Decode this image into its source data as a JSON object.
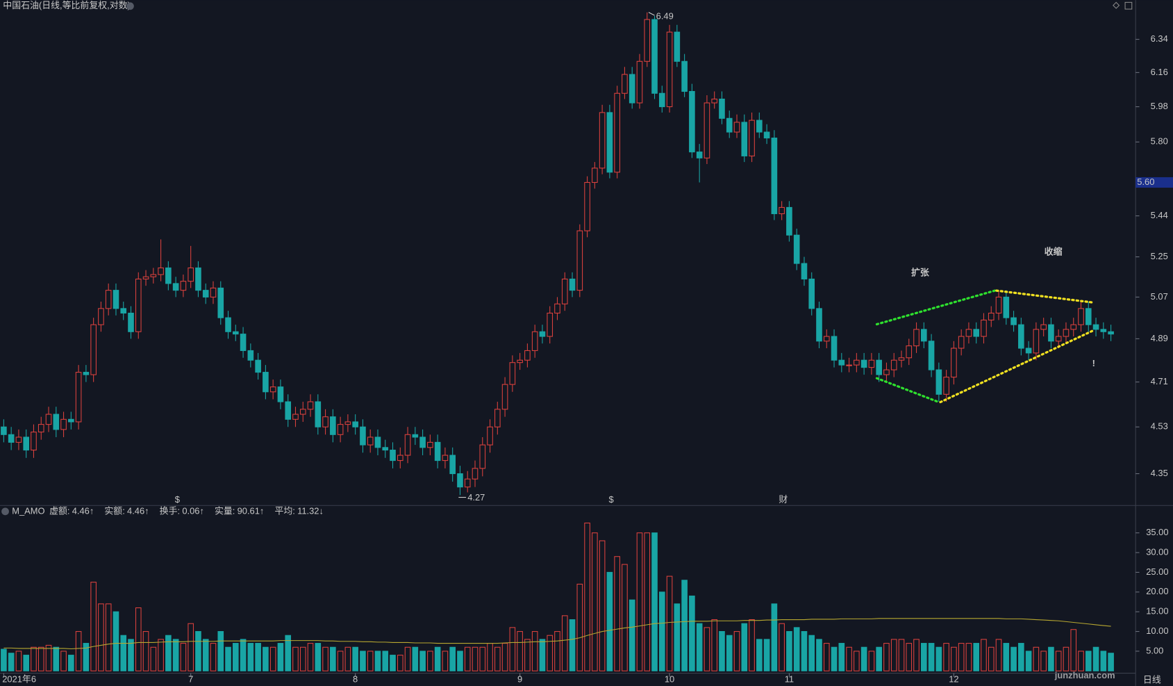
{
  "chart_data": {
    "type": "candlestick",
    "title": "中国石油(日线,等比前复权,对数)",
    "log_scale": true,
    "up_color": "#d9413d",
    "down_color": "#19a5a5",
    "ylim": [
      4.24,
      6.5
    ],
    "yticks": [
      6.34,
      6.16,
      5.98,
      {
        "value": 5.8,
        "label": "5.80"
      },
      5.44,
      5.25,
      5.07,
      4.89,
      4.71,
      4.53,
      4.35
    ],
    "current_price": {
      "value": 5.6,
      "label": "5.60"
    },
    "high_marker": 6.49,
    "low_marker": 4.27,
    "period_label": "日线",
    "watermark": "junzhuan.com",
    "event_markers": [
      {
        "text": "$",
        "color": "#e03030"
      },
      {
        "text": "$",
        "color": "#e03030"
      },
      {
        "text": "财",
        "color": "#4a8cff"
      }
    ],
    "annotations": [
      {
        "text": "扩张",
        "color": "#2ee02e"
      },
      {
        "text": "收缩",
        "color": "#f0e020"
      },
      {
        "text": "!",
        "color": "#ffffff"
      }
    ],
    "categories": [
      "2021年6",
      null,
      null,
      null,
      null,
      null,
      null,
      null,
      null,
      null,
      null,
      null,
      null,
      null,
      null,
      null,
      null,
      null,
      null,
      null,
      null,
      null,
      null,
      null,
      null,
      "7",
      null,
      null,
      null,
      null,
      null,
      null,
      null,
      null,
      null,
      null,
      null,
      null,
      null,
      null,
      null,
      null,
      null,
      null,
      null,
      null,
      null,
      "8",
      null,
      null,
      null,
      null,
      null,
      null,
      null,
      null,
      null,
      null,
      null,
      null,
      null,
      null,
      null,
      null,
      null,
      null,
      null,
      null,
      null,
      "9",
      null,
      null,
      null,
      null,
      null,
      null,
      null,
      null,
      null,
      null,
      null,
      null,
      null,
      null,
      null,
      null,
      null,
      null,
      null,
      "10",
      null,
      null,
      null,
      null,
      null,
      null,
      null,
      null,
      null,
      null,
      null,
      null,
      null,
      null,
      null,
      "11",
      null,
      null,
      null,
      null,
      null,
      null,
      null,
      null,
      null,
      null,
      null,
      null,
      null,
      null,
      null,
      null,
      null,
      null,
      null,
      null,
      null,
      "12",
      null,
      null,
      null,
      null,
      null,
      null,
      null,
      null,
      null,
      null,
      null,
      null,
      null,
      null,
      null,
      null,
      null,
      null,
      null,
      null,
      null
    ],
    "open": [
      4.53,
      4.5,
      4.47,
      4.49,
      4.44,
      4.51,
      4.54,
      4.58,
      4.52,
      4.56,
      4.55,
      4.75,
      4.74,
      4.95,
      5.02,
      5.1,
      5.02,
      5.0,
      4.92,
      5.15,
      5.16,
      5.17,
      5.2,
      5.13,
      5.1,
      5.14,
      5.2,
      5.1,
      5.07,
      5.11,
      4.98,
      4.92,
      4.91,
      4.84,
      4.8,
      4.75,
      4.67,
      4.69,
      4.63,
      4.56,
      4.58,
      4.6,
      4.63,
      4.53,
      4.57,
      4.5,
      4.54,
      4.55,
      4.53,
      4.46,
      4.49,
      4.45,
      4.44,
      4.4,
      4.42,
      4.5,
      4.49,
      4.45,
      4.47,
      4.4,
      4.42,
      4.35,
      4.3,
      4.33,
      4.37,
      4.46,
      4.53,
      4.6,
      4.7,
      4.79,
      4.8,
      4.84,
      4.92,
      4.9,
      5.0,
      5.04,
      5.15,
      5.1,
      5.37,
      5.6,
      5.67,
      5.95,
      5.65,
      6.05,
      6.15,
      6.0,
      6.22,
      6.45,
      6.05,
      5.98,
      6.38,
      6.22,
      6.06,
      5.75,
      5.72,
      6.0,
      6.02,
      5.92,
      5.85,
      5.9,
      5.73,
      5.91,
      5.85,
      5.82,
      5.45,
      5.48,
      5.35,
      5.22,
      5.15,
      5.02,
      4.88,
      4.9,
      4.8,
      4.78,
      4.78,
      4.8,
      4.77,
      4.8,
      4.74,
      4.76,
      4.8,
      4.81,
      4.86,
      4.93,
      4.88,
      4.76,
      4.66,
      4.73,
      4.85,
      4.9,
      4.93,
      4.9,
      4.97,
      5.0,
      5.07,
      4.98,
      4.95,
      4.85,
      4.83,
      4.93,
      4.95,
      4.88,
      4.9,
      4.93,
      4.95,
      5.02,
      4.95,
      4.93,
      4.92
    ],
    "high": [
      4.56,
      4.53,
      4.52,
      4.52,
      4.54,
      4.57,
      4.61,
      4.61,
      4.59,
      4.59,
      4.78,
      4.78,
      4.98,
      5.05,
      5.13,
      5.13,
      5.05,
      5.03,
      5.18,
      5.19,
      5.2,
      5.33,
      5.23,
      5.16,
      5.17,
      5.3,
      5.23,
      5.13,
      5.14,
      5.14,
      5.01,
      4.95,
      4.94,
      4.87,
      4.83,
      4.78,
      4.72,
      4.72,
      4.66,
      4.61,
      4.63,
      4.66,
      4.66,
      4.6,
      4.6,
      4.57,
      4.58,
      4.58,
      4.56,
      4.52,
      4.52,
      4.48,
      4.47,
      4.45,
      4.53,
      4.53,
      4.52,
      4.5,
      4.5,
      4.45,
      4.45,
      4.38,
      4.36,
      4.4,
      4.49,
      4.56,
      4.63,
      4.73,
      4.82,
      4.83,
      4.87,
      4.95,
      4.95,
      5.03,
      5.07,
      5.18,
      5.18,
      5.4,
      5.63,
      5.7,
      5.99,
      5.99,
      6.09,
      6.19,
      6.19,
      6.26,
      6.49,
      6.47,
      6.09,
      6.42,
      6.42,
      6.26,
      6.1,
      5.79,
      6.04,
      6.06,
      6.06,
      5.96,
      5.94,
      5.94,
      5.95,
      5.95,
      5.89,
      5.86,
      5.51,
      5.51,
      5.38,
      5.25,
      5.18,
      5.05,
      4.93,
      4.93,
      4.83,
      4.81,
      4.83,
      4.83,
      4.83,
      4.83,
      4.79,
      4.83,
      4.84,
      4.89,
      4.96,
      4.96,
      4.91,
      4.79,
      4.76,
      4.88,
      4.93,
      4.96,
      4.96,
      5.0,
      5.03,
      5.1,
      5.1,
      5.01,
      4.98,
      4.88,
      4.96,
      4.98,
      4.98,
      4.93,
      4.96,
      4.98,
      5.05,
      5.05,
      4.98,
      4.96,
      4.95
    ],
    "low": [
      4.47,
      4.44,
      4.44,
      4.41,
      4.41,
      4.48,
      4.51,
      4.49,
      4.49,
      4.52,
      4.52,
      4.71,
      4.71,
      4.92,
      4.99,
      4.99,
      4.97,
      4.89,
      4.89,
      5.12,
      5.13,
      5.14,
      5.1,
      5.07,
      5.07,
      5.11,
      5.07,
      5.04,
      5.04,
      4.95,
      4.89,
      4.88,
      4.81,
      4.77,
      4.72,
      4.64,
      4.64,
      4.6,
      4.53,
      4.53,
      4.55,
      4.57,
      4.5,
      4.5,
      4.47,
      4.47,
      4.51,
      4.5,
      4.43,
      4.43,
      4.42,
      4.41,
      4.37,
      4.37,
      4.39,
      4.46,
      4.42,
      4.42,
      4.37,
      4.37,
      4.32,
      4.27,
      4.28,
      4.3,
      4.34,
      4.43,
      4.5,
      4.57,
      4.67,
      4.76,
      4.77,
      4.81,
      4.87,
      4.87,
      4.97,
      5.01,
      5.07,
      5.07,
      5.34,
      5.57,
      5.64,
      5.62,
      5.62,
      6.02,
      5.97,
      5.97,
      6.19,
      6.02,
      5.95,
      5.95,
      6.19,
      6.03,
      5.72,
      5.6,
      5.69,
      5.97,
      5.89,
      5.82,
      5.82,
      5.7,
      5.7,
      5.82,
      5.79,
      5.42,
      5.42,
      5.32,
      5.19,
      5.12,
      4.99,
      4.85,
      4.85,
      4.77,
      4.75,
      4.75,
      4.75,
      4.74,
      4.74,
      4.71,
      4.71,
      4.73,
      4.77,
      4.78,
      4.83,
      4.85,
      4.73,
      4.63,
      4.63,
      4.7,
      4.82,
      4.87,
      4.87,
      4.87,
      4.94,
      4.97,
      4.95,
      4.92,
      4.82,
      4.8,
      4.8,
      4.9,
      4.85,
      4.85,
      4.87,
      4.9,
      4.92,
      4.92,
      4.9,
      4.89,
      4.88
    ],
    "close": [
      4.5,
      4.47,
      4.49,
      4.44,
      4.51,
      4.54,
      4.58,
      4.52,
      4.56,
      4.55,
      4.75,
      4.74,
      4.95,
      5.02,
      5.1,
      5.02,
      5.0,
      4.92,
      5.15,
      5.16,
      5.17,
      5.2,
      5.13,
      5.1,
      5.14,
      5.2,
      5.1,
      5.07,
      5.11,
      4.98,
      4.92,
      4.91,
      4.84,
      4.8,
      4.75,
      4.67,
      4.69,
      4.63,
      4.56,
      4.58,
      4.6,
      4.63,
      4.53,
      4.57,
      4.5,
      4.54,
      4.55,
      4.53,
      4.46,
      4.49,
      4.45,
      4.44,
      4.4,
      4.42,
      4.5,
      4.49,
      4.45,
      4.47,
      4.4,
      4.42,
      4.35,
      4.3,
      4.33,
      4.37,
      4.46,
      4.53,
      4.6,
      4.7,
      4.79,
      4.8,
      4.84,
      4.92,
      4.9,
      5.0,
      5.04,
      5.15,
      5.1,
      5.37,
      5.6,
      5.67,
      5.95,
      5.65,
      6.05,
      6.15,
      6.0,
      6.22,
      6.45,
      6.05,
      5.98,
      6.38,
      6.22,
      6.06,
      5.75,
      5.72,
      6.0,
      6.02,
      5.92,
      5.85,
      5.9,
      5.73,
      5.91,
      5.85,
      5.82,
      5.45,
      5.48,
      5.35,
      5.22,
      5.15,
      5.02,
      4.88,
      4.9,
      4.8,
      4.78,
      4.78,
      4.8,
      4.77,
      4.8,
      4.74,
      4.76,
      4.8,
      4.81,
      4.86,
      4.93,
      4.88,
      4.76,
      4.66,
      4.73,
      4.85,
      4.9,
      4.93,
      4.9,
      4.97,
      5.0,
      5.07,
      4.98,
      4.95,
      4.85,
      4.83,
      4.93,
      4.95,
      4.88,
      4.9,
      4.93,
      4.95,
      5.02,
      4.95,
      4.93,
      4.92,
      4.91
    ],
    "volume": {
      "type": "bar",
      "name": "M_AMO",
      "ma_color": "#b8a830",
      "ylim": [
        0,
        41
      ],
      "yticks": [
        {
          "value": 35,
          "label": "35.00"
        },
        {
          "value": 30,
          "label": "30.00"
        },
        {
          "value": 25,
          "label": "25.00"
        },
        {
          "value": 20,
          "label": "20.00"
        },
        {
          "value": 15,
          "label": "15.00"
        },
        {
          "value": 10,
          "label": "10.00"
        },
        {
          "value": 5,
          "label": "5.00"
        }
      ],
      "legend": [
        {
          "label": "虚额:",
          "value": 4.46,
          "trend": "↑",
          "color": "#8c8cf0"
        },
        {
          "label": "实额:",
          "value": 4.46,
          "trend": "↑",
          "color": "#d0d0d0"
        },
        {
          "label": "换手:",
          "value": 0.06,
          "trend": "↑",
          "color": "#e04040"
        },
        {
          "label": "实量:",
          "value": 90.61,
          "trend": "↑",
          "color": "#e8e040"
        },
        {
          "label": "平均:",
          "value": 11.32,
          "trend": "↓",
          "color": "#b8a830"
        }
      ],
      "values": [
        5.5,
        4.5,
        5,
        4,
        6,
        6,
        6.5,
        6,
        5,
        4,
        10,
        7,
        22.5,
        17,
        17,
        15,
        9,
        8,
        16,
        10,
        6,
        8,
        9,
        8,
        7,
        12,
        10,
        8,
        7,
        10,
        6,
        7,
        8,
        7,
        7,
        6,
        6,
        7,
        9,
        6,
        6,
        7,
        7,
        6,
        6,
        5,
        6,
        6,
        5,
        5,
        5,
        5,
        4,
        4,
        6,
        6,
        5,
        5,
        6,
        5,
        6,
        5,
        6,
        6,
        6,
        7,
        6,
        7,
        11,
        10,
        8,
        10,
        8,
        9,
        10,
        14,
        13,
        22,
        37.5,
        35,
        33,
        25,
        29,
        27,
        18,
        35,
        35,
        35,
        20,
        24,
        17,
        23,
        19,
        12,
        11,
        13,
        10,
        9,
        10,
        12,
        13,
        8,
        8,
        17,
        12,
        10,
        11,
        10,
        9,
        8,
        7,
        6,
        7,
        6,
        5,
        6,
        5,
        6,
        7,
        8,
        8,
        7,
        8,
        7,
        7,
        6,
        7,
        6,
        7,
        7,
        7,
        8,
        6,
        8,
        7,
        6,
        7,
        5,
        6,
        5,
        6,
        5,
        6,
        10.5,
        5,
        5,
        6,
        5,
        4.5
      ],
      "ma": [
        5.8,
        5.8,
        5.7,
        5.7,
        5.7,
        5.7,
        5.7,
        5.7,
        5.7,
        5.6,
        5.7,
        5.8,
        6.2,
        6.5,
        6.8,
        7.0,
        7.0,
        7.0,
        7.2,
        7.2,
        7.2,
        7.3,
        7.4,
        7.4,
        7.4,
        7.5,
        7.5,
        7.5,
        7.5,
        7.6,
        7.6,
        7.6,
        7.6,
        7.6,
        7.6,
        7.6,
        7.6,
        7.7,
        7.7,
        7.7,
        7.7,
        7.7,
        7.7,
        7.6,
        7.6,
        7.5,
        7.5,
        7.5,
        7.4,
        7.4,
        7.3,
        7.3,
        7.2,
        7.2,
        7.2,
        7.1,
        7.1,
        7.1,
        7.0,
        7.0,
        7.0,
        7.0,
        7.0,
        7.0,
        7.0,
        7.0,
        7.0,
        7.1,
        7.2,
        7.2,
        7.3,
        7.4,
        7.4,
        7.5,
        7.6,
        7.8,
        8.0,
        8.4,
        9.0,
        9.5,
        10.0,
        10.3,
        10.6,
        10.9,
        11.1,
        11.4,
        11.7,
        12.0,
        12.1,
        12.3,
        12.4,
        12.5,
        12.6,
        12.6,
        12.6,
        12.7,
        12.7,
        12.7,
        12.7,
        12.8,
        12.8,
        12.8,
        12.9,
        12.9,
        13.0,
        13.0,
        13.0,
        13.0,
        13.1,
        13.1,
        13.1,
        13.1,
        13.2,
        13.2,
        13.2,
        13.2,
        13.2,
        13.3,
        13.3,
        13.3,
        13.3,
        13.3,
        13.3,
        13.3,
        13.3,
        13.3,
        13.3,
        13.3,
        13.3,
        13.3,
        13.3,
        13.3,
        13.3,
        13.3,
        13.2,
        13.2,
        13.2,
        13.1,
        13.0,
        12.9,
        12.8,
        12.7,
        12.5,
        12.3,
        12.1,
        11.9,
        11.7,
        11.5,
        11.32
      ]
    }
  }
}
